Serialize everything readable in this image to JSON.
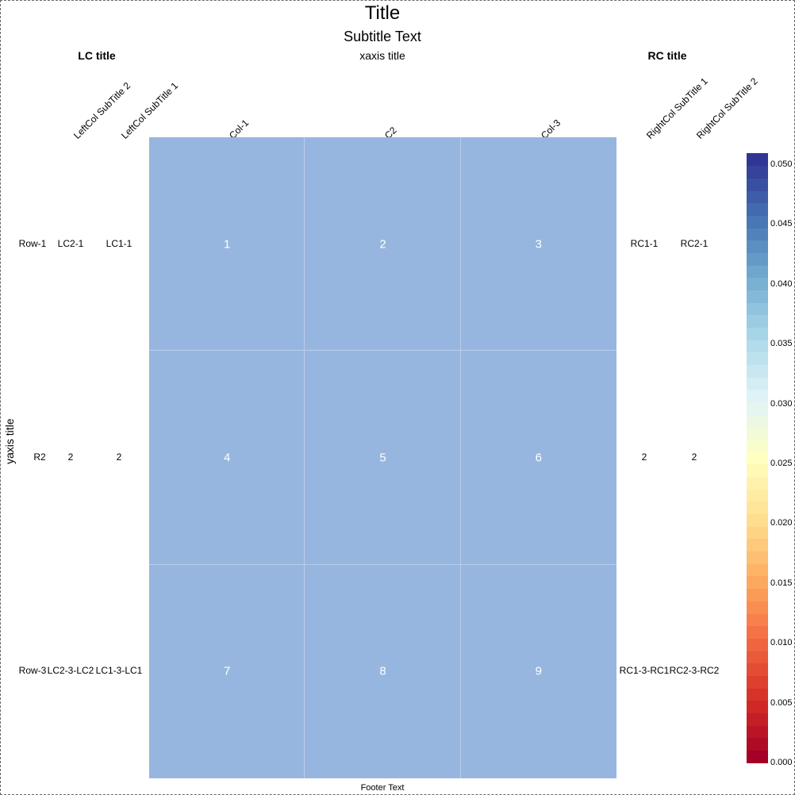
{
  "chart_data": {
    "type": "heatmap",
    "title": "Title",
    "subtitle": "Subtitle Text",
    "xlabel": "xaxis title",
    "ylabel": "yaxis title",
    "footer": "Footer Text",
    "columns": [
      "Col-1",
      "C2",
      "Col-3"
    ],
    "rows": [
      "Row-1",
      "R2",
      "Row-3"
    ],
    "cell_labels": [
      [
        "1",
        "2",
        "3"
      ],
      [
        "4",
        "5",
        "6"
      ],
      [
        "7",
        "8",
        "9"
      ]
    ],
    "cell_color": "#96b6df",
    "left_columns": {
      "title": "LC title",
      "subtitles": [
        "LeftCol SubTitle 2",
        "LeftCol SubTitle 1"
      ],
      "values": [
        [
          "LC2-1",
          "LC1-1"
        ],
        [
          "2",
          "2"
        ],
        [
          "LC2-3-LC2",
          "LC1-3-LC1"
        ]
      ]
    },
    "right_columns": {
      "title": "RC title",
      "subtitles": [
        "RightCol SubTitle 1",
        "RightCol SubTitle 2"
      ],
      "values": [
        [
          "RC1-1",
          "RC2-1"
        ],
        [
          "2",
          "2"
        ],
        [
          "RC1-3-RC1",
          "RC2-3-RC2"
        ]
      ]
    },
    "legend": {
      "range": [
        0.0,
        0.05
      ],
      "ticks": [
        0.0,
        0.005,
        0.01,
        0.015,
        0.02,
        0.025,
        0.03,
        0.035,
        0.04,
        0.045,
        0.05
      ],
      "tick_labels": [
        "0.000",
        "0.005",
        "0.010",
        "0.015",
        "0.020",
        "0.025",
        "0.030",
        "0.035",
        "0.040",
        "0.045",
        "0.050"
      ],
      "colormap": [
        "#a50026",
        "#d73027",
        "#f46d43",
        "#fdae61",
        "#fee090",
        "#ffffbf",
        "#e0f3f8",
        "#abd9e9",
        "#74add1",
        "#4575b4",
        "#313695"
      ],
      "placement": "right"
    }
  }
}
